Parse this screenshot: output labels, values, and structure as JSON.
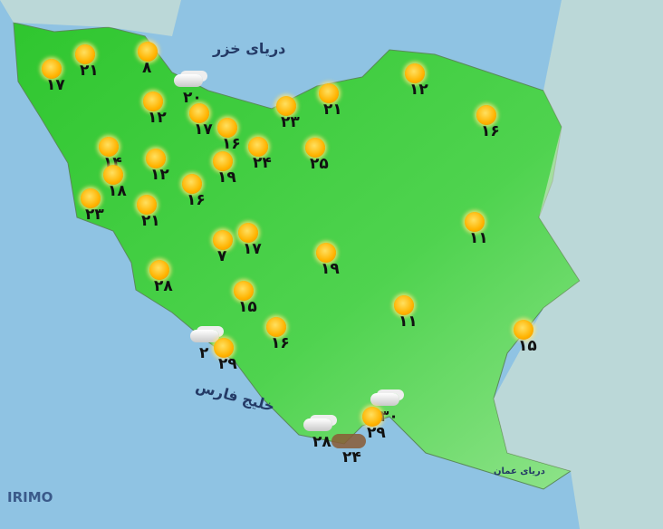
{
  "title_seas": {
    "caspian": "دریای خزر",
    "persian_gulf": "خلیج فارس",
    "oman": "دریای عمان"
  },
  "logo": "IRIMO",
  "colors": {
    "sea": "#8fc3e3",
    "land": "#3ccf3c",
    "land_light": "#b6f0b0"
  },
  "stations": [
    {
      "icon": "sun",
      "temp": "۱۷"
    },
    {
      "icon": "sun",
      "temp": "۲۱"
    },
    {
      "icon": "sun",
      "temp": "۸"
    },
    {
      "icon": "cloud",
      "temp": "۲۰"
    },
    {
      "icon": "sun",
      "temp": "۱۲"
    },
    {
      "icon": "sun",
      "temp": "۱۷"
    },
    {
      "icon": "sun",
      "temp": "۱۶"
    },
    {
      "icon": "sun",
      "temp": "۲۳"
    },
    {
      "icon": "sun",
      "temp": "۲۱"
    },
    {
      "icon": "sun",
      "temp": "۲۴"
    },
    {
      "icon": "sun",
      "temp": "۲۵"
    },
    {
      "icon": "sun",
      "temp": "۱۲"
    },
    {
      "icon": "sun",
      "temp": "۱۶"
    },
    {
      "icon": "sun",
      "temp": "۱۴"
    },
    {
      "icon": "sun",
      "temp": "۱۲"
    },
    {
      "icon": "sun",
      "temp": "۱۹"
    },
    {
      "icon": "sun",
      "temp": "۱۸"
    },
    {
      "icon": "sun",
      "temp": "۱۶"
    },
    {
      "icon": "sun",
      "temp": "۲۳"
    },
    {
      "icon": "sun",
      "temp": "۲۱"
    },
    {
      "icon": "sun",
      "temp": "۱۱"
    },
    {
      "icon": "sun",
      "temp": "۷"
    },
    {
      "icon": "sun",
      "temp": "۱۷"
    },
    {
      "icon": "sun",
      "temp": "۱۹"
    },
    {
      "icon": "sun",
      "temp": "۲۸"
    },
    {
      "icon": "sun",
      "temp": "۱۵"
    },
    {
      "icon": "sun",
      "temp": "۱۱"
    },
    {
      "icon": "sun",
      "temp": "۱۵"
    },
    {
      "icon": "sun",
      "temp": "۱۶"
    },
    {
      "icon": "cloud",
      "temp": "۲"
    },
    {
      "icon": "sun",
      "temp": "۲۹"
    },
    {
      "icon": "cloud",
      "temp": "۳۰"
    },
    {
      "icon": "sun",
      "temp": "۲۹"
    },
    {
      "icon": "cloud",
      "temp": "۲۸"
    },
    {
      "icon": "dust",
      "temp": "۲۴"
    }
  ]
}
